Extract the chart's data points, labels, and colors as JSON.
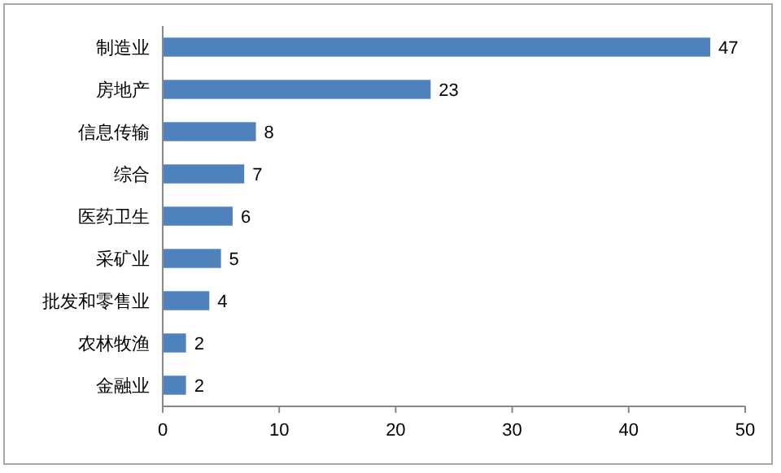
{
  "chart_data": {
    "type": "bar",
    "orientation": "horizontal",
    "categories": [
      "制造业",
      "房地产",
      "信息传输",
      "综合",
      "医药卫生",
      "采矿业",
      "批发和零售业",
      "农林牧渔",
      "金融业"
    ],
    "values": [
      47,
      23,
      8,
      7,
      6,
      5,
      4,
      2,
      2
    ],
    "color": "#4f81bd",
    "xlim": [
      0,
      50
    ],
    "xticks": [
      0,
      10,
      20,
      30,
      40,
      50
    ],
    "grid": false,
    "data_labels": true
  }
}
